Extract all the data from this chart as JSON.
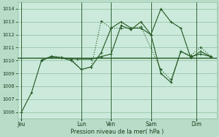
{
  "background_color": "#b8dcc8",
  "plot_bg_color": "#cceadc",
  "grid_color": "#88b898",
  "line_color": "#2a5e2a",
  "xlabel": "Pression niveau de la mer( hPa )",
  "ylim": [
    1005.5,
    1014.5
  ],
  "yticks": [
    1006,
    1007,
    1008,
    1009,
    1010,
    1011,
    1012,
    1013,
    1014
  ],
  "day_labels": [
    "Jeu",
    "Lun",
    "Ven",
    "Sam",
    "Dim"
  ],
  "day_x": [
    0.0,
    3.0,
    4.5,
    6.5,
    8.8
  ],
  "vline_x": [
    0.0,
    3.0,
    4.5,
    6.5,
    8.8
  ],
  "xlim": [
    -0.2,
    9.8
  ],
  "hline_y": 1010.15,
  "s1_x": [
    0.0,
    0.5,
    1.0,
    1.5,
    2.0,
    2.8,
    3.5,
    4.0,
    4.5,
    5.0,
    5.5,
    6.0,
    6.5,
    7.0,
    7.5,
    8.0,
    8.5,
    9.0,
    9.5
  ],
  "s1_y": [
    1006.0,
    1007.5,
    1010.0,
    1010.3,
    1010.2,
    1010.1,
    1010.1,
    1010.3,
    1010.5,
    1012.7,
    1012.4,
    1013.0,
    1012.0,
    1014.0,
    1013.0,
    1012.5,
    1010.2,
    1010.7,
    1010.3
  ],
  "s2_x": [
    1.0,
    1.5,
    2.0,
    2.5,
    3.0,
    3.5,
    4.0,
    4.5,
    5.0,
    5.5,
    6.0,
    7.0,
    7.5,
    8.0,
    8.5,
    9.0,
    9.5
  ],
  "s2_y": [
    1010.0,
    1010.35,
    1010.25,
    1010.1,
    1009.3,
    1009.5,
    1013.05,
    1012.5,
    1012.5,
    1012.5,
    1012.6,
    1009.3,
    1008.5,
    1010.7,
    1010.4,
    1011.0,
    1010.35
  ],
  "s3_x": [
    1.0,
    1.5,
    2.0,
    2.5,
    3.0,
    3.5,
    4.0,
    4.5,
    5.0,
    5.5,
    6.0,
    6.5,
    7.0,
    7.5,
    8.0,
    8.5,
    9.0,
    9.5
  ],
  "s3_y": [
    1010.0,
    1010.3,
    1010.2,
    1010.0,
    1009.3,
    1009.5,
    1010.6,
    1012.5,
    1013.0,
    1012.5,
    1012.5,
    1012.0,
    1009.0,
    1008.3,
    1010.7,
    1010.3,
    1010.5,
    1010.3
  ]
}
